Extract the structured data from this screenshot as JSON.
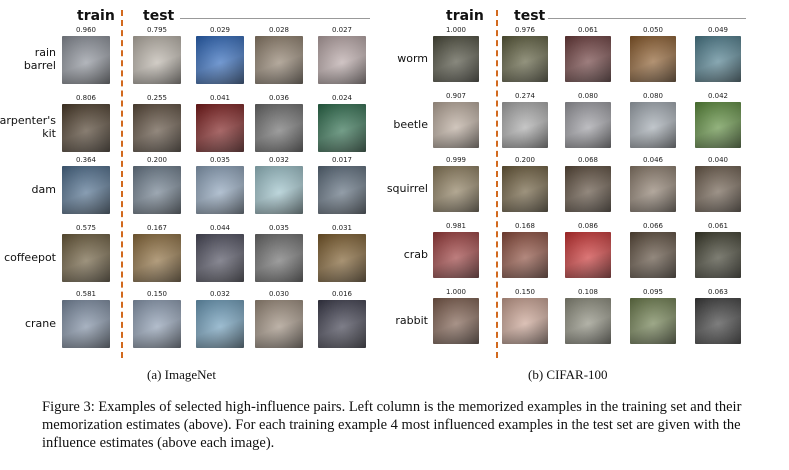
{
  "panel_a": {
    "train_header": "train",
    "test_header": "test",
    "subcaption": "(a) ImageNet",
    "rows": [
      {
        "label": "rain\nbarrel",
        "train_value": "0.960",
        "test_values": [
          "0.795",
          "0.029",
          "0.028",
          "0.027"
        ],
        "colors": [
          "#8a8f98",
          "#b9b2a8",
          "#2a64b8",
          "#8d7d6a",
          "#b7a5a5"
        ]
      },
      {
        "label": "carpenter's\nkit",
        "train_value": "0.806",
        "test_values": [
          "0.255",
          "0.041",
          "0.036",
          "0.024"
        ],
        "colors": [
          "#4a3a28",
          "#5a4a3a",
          "#7a1a1a",
          "#6a6a6a",
          "#2a6a4a"
        ]
      },
      {
        "label": "dam",
        "train_value": "0.364",
        "test_values": [
          "0.200",
          "0.035",
          "0.032",
          "0.017"
        ],
        "colors": [
          "#4a6a8a",
          "#6a7a8a",
          "#8aa0b8",
          "#9ac0c8",
          "#5a6a7a"
        ]
      },
      {
        "label": "coffeepot",
        "train_value": "0.575",
        "test_values": [
          "0.167",
          "0.044",
          "0.035",
          "0.031"
        ],
        "colors": [
          "#6a5a3a",
          "#8a6a3a",
          "#4a4a5a",
          "#6a6a6a",
          "#7a5a2a"
        ]
      },
      {
        "label": "crane",
        "train_value": "0.581",
        "test_values": [
          "0.150",
          "0.032",
          "0.030",
          "0.016"
        ],
        "colors": [
          "#7a8aa0",
          "#8a9ab0",
          "#6a9ab8",
          "#9a8a7a",
          "#3a3a4a"
        ]
      }
    ]
  },
  "panel_b": {
    "train_header": "train",
    "test_header": "test",
    "subcaption": "(b) CIFAR-100",
    "rows": [
      {
        "label": "worm",
        "train_value": "1.000",
        "test_values": [
          "0.976",
          "0.061",
          "0.050",
          "0.049"
        ],
        "colors": [
          "#4a4a3a",
          "#5a5a3a",
          "#6a3a3a",
          "#8a5a2a",
          "#4a7a8a"
        ]
      },
      {
        "label": "beetle",
        "train_value": "0.907",
        "test_values": [
          "0.274",
          "0.080",
          "0.080",
          "0.042"
        ],
        "colors": [
          "#b8a89a",
          "#a8a8a8",
          "#9a9aa0",
          "#a0a8b0",
          "#5a8a3a"
        ]
      },
      {
        "label": "squirrel",
        "train_value": "0.999",
        "test_values": [
          "0.200",
          "0.068",
          "0.046",
          "0.040"
        ],
        "colors": [
          "#8a7a5a",
          "#6a5a3a",
          "#5a4a3a",
          "#8a7a6a",
          "#6a5a4a"
        ]
      },
      {
        "label": "crab",
        "train_value": "0.981",
        "test_values": [
          "0.168",
          "0.086",
          "0.066",
          "0.061"
        ],
        "colors": [
          "#9a3a3a",
          "#8a4a3a",
          "#c83030",
          "#5a4a3a",
          "#3a3a2a"
        ]
      },
      {
        "label": "rabbit",
        "train_value": "1.000",
        "test_values": [
          "0.150",
          "0.108",
          "0.095",
          "0.063"
        ],
        "colors": [
          "#7a5a4a",
          "#c8a090",
          "#8a8a7a",
          "#6a7a4a",
          "#3a3a3a"
        ]
      }
    ]
  },
  "caption": "Figure 3: Examples of selected high-influence pairs. Left column is the memorized examples in the training set and their memorization estimates (above). For each training example 4 most influenced examples in the test set are given with the influence estimates (above each image)."
}
